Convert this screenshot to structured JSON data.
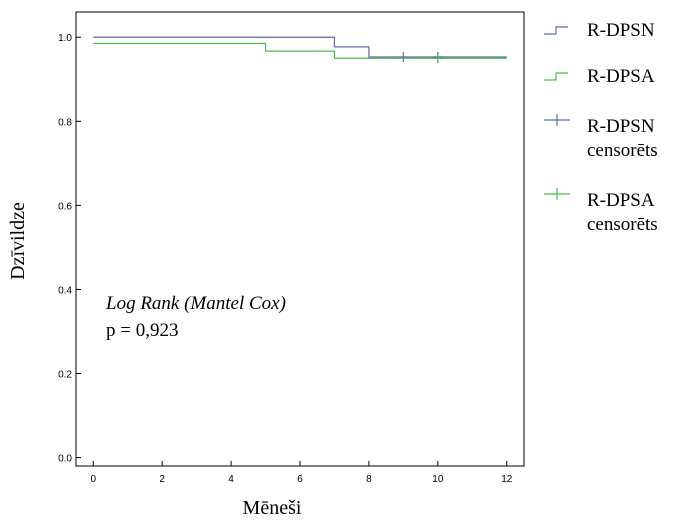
{
  "chart_data": {
    "type": "line",
    "subtype": "kaplan-meier step",
    "title": "",
    "xlabel": "Mēneši",
    "ylabel": "Dzīvildze",
    "xlim": [
      -0.5,
      12.5
    ],
    "ylim": [
      -0.02,
      1.06
    ],
    "x_ticks": [
      0,
      2,
      4,
      6,
      8,
      10,
      12
    ],
    "y_ticks": [
      0.0,
      0.2,
      0.4,
      0.6,
      0.8,
      1.0
    ],
    "x_tick_labels": [
      "0",
      "2",
      "4",
      "6",
      "8",
      "10",
      "12"
    ],
    "y_tick_labels": [
      "0.0",
      "0.2",
      "0.4",
      "0.6",
      "0.8",
      "1.0"
    ],
    "grid": false,
    "legend_position": "right",
    "series": [
      {
        "name": "R-DPSN",
        "color": "#5b6aa8",
        "points": [
          [
            0,
            1.0
          ],
          [
            7,
            1.0
          ],
          [
            7,
            0.977
          ],
          [
            8,
            0.977
          ],
          [
            8,
            0.953
          ],
          [
            12,
            0.953
          ]
        ],
        "censored": [
          [
            9,
            0.953
          ],
          [
            10,
            0.953
          ]
        ]
      },
      {
        "name": "R-DPSA",
        "color": "#4dbb4d",
        "points": [
          [
            0,
            0.985
          ],
          [
            5,
            0.985
          ],
          [
            5,
            0.967
          ],
          [
            7,
            0.967
          ],
          [
            7,
            0.95
          ],
          [
            12,
            0.95
          ]
        ],
        "censored": [
          [
            10,
            0.95
          ]
        ]
      }
    ],
    "legend": [
      {
        "lines": [
          "R-DPSN"
        ],
        "kind": "step",
        "color": "#5b6aa8"
      },
      {
        "lines": [
          "R-DPSA"
        ],
        "kind": "step",
        "color": "#4dbb4d"
      },
      {
        "lines": [
          "R-DPSN",
          "censorēts"
        ],
        "kind": "plus",
        "color": "#5b6aa8"
      },
      {
        "lines": [
          "R-DPSA",
          "censorēts"
        ],
        "kind": "plus",
        "color": "#4dbb4d"
      }
    ],
    "annotations": {
      "test_name": "Log Rank (Mantel Cox)",
      "p_value": "p = 0,923"
    }
  }
}
